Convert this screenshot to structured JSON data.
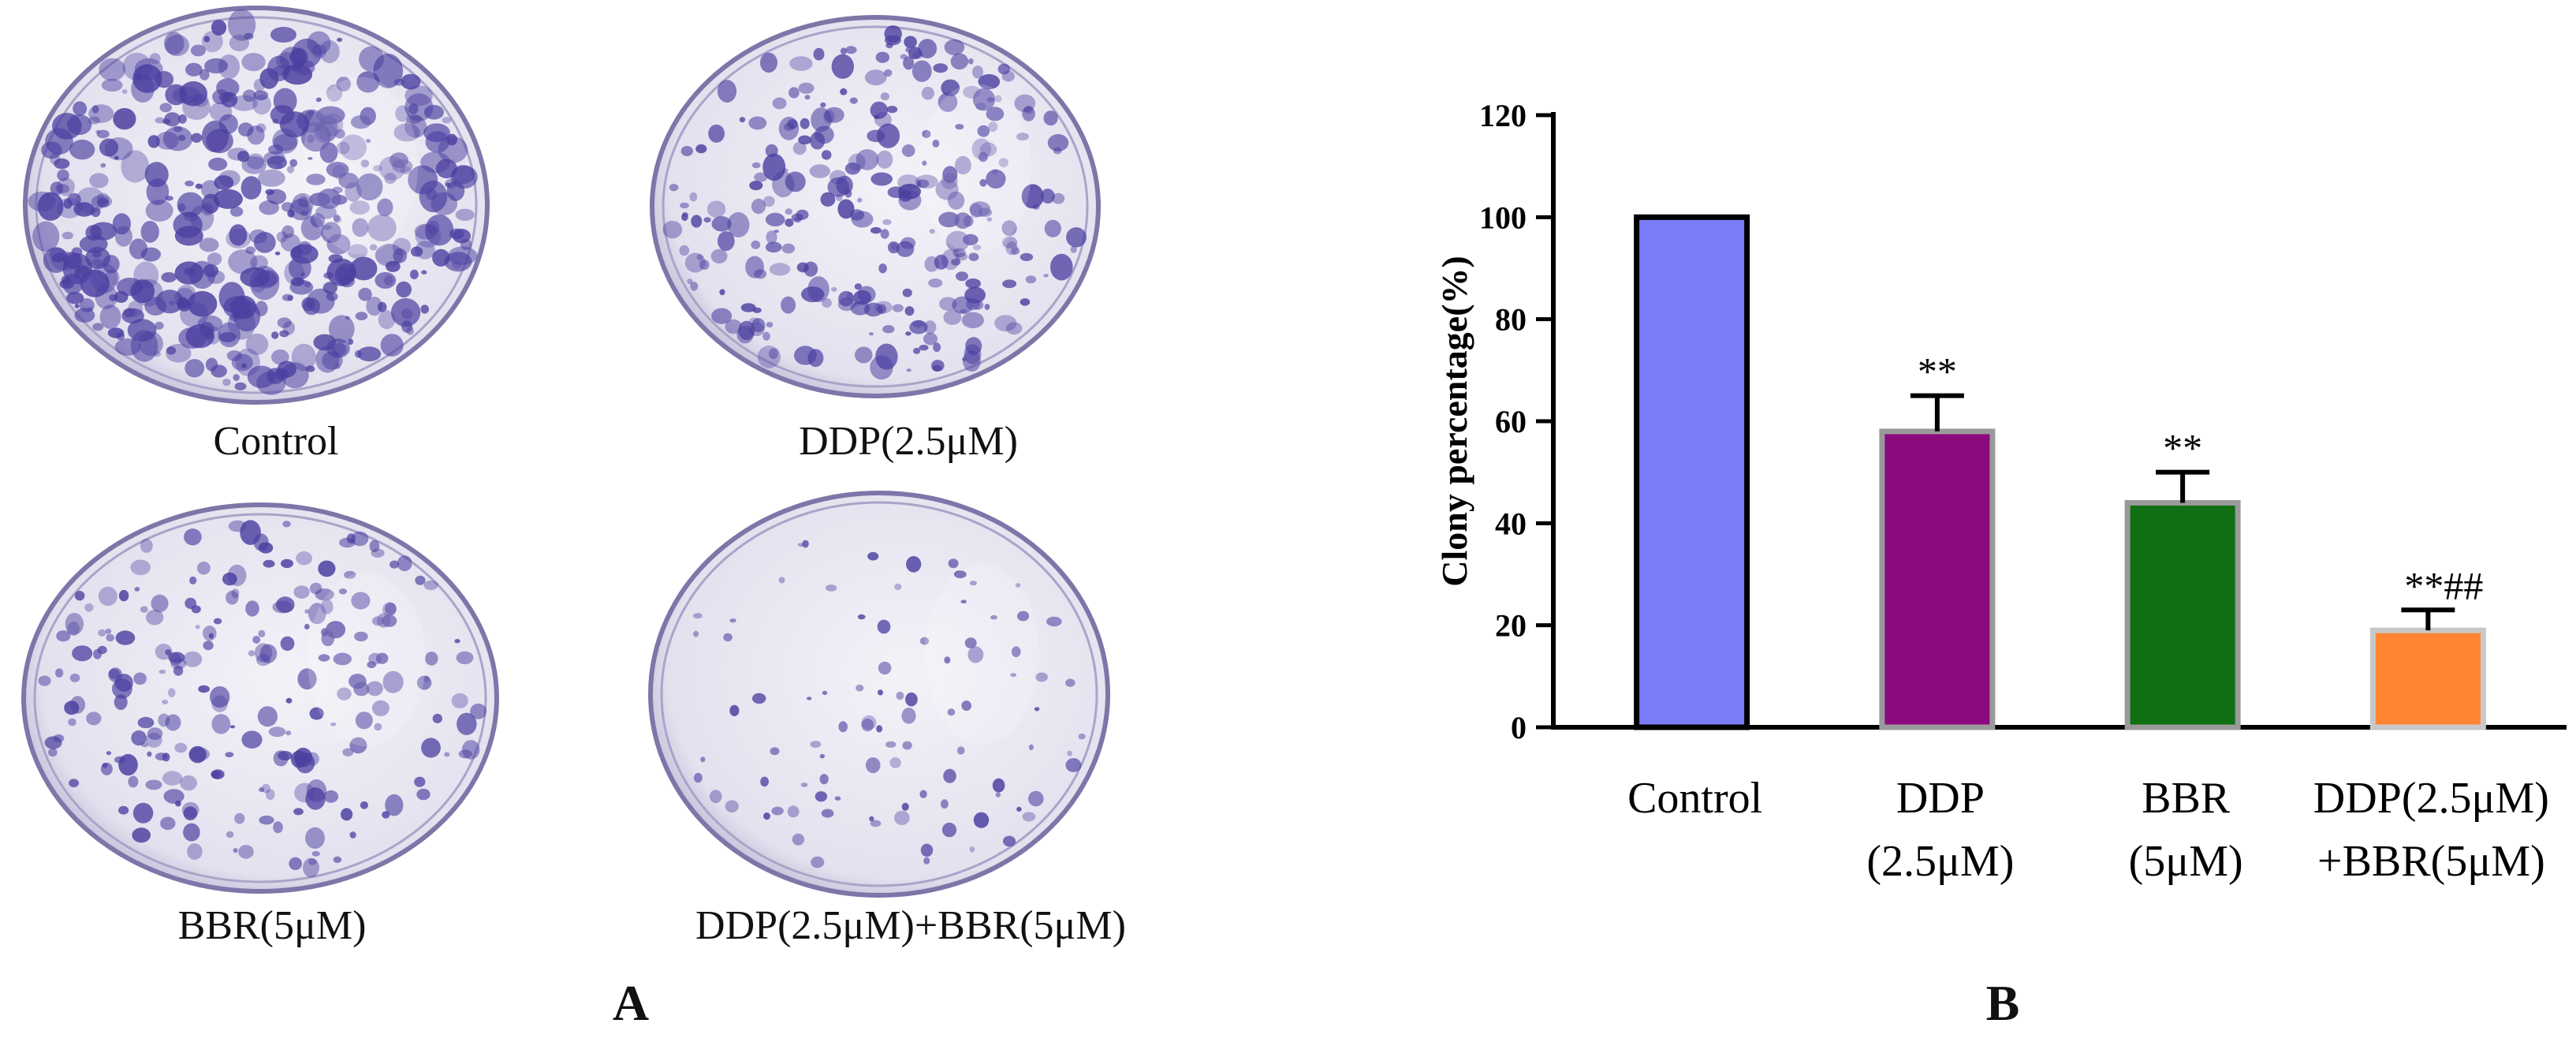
{
  "panel_a": {
    "letter": "A",
    "plates": [
      {
        "label": "Control",
        "density": 1.0
      },
      {
        "label": "DDP(2.5μM)",
        "density": 0.62
      },
      {
        "label": "BBR(5μM)",
        "density": 0.48
      },
      {
        "label": "DDP(2.5μM)+BBR(5μM)",
        "density": 0.18
      }
    ]
  },
  "panel_b": {
    "letter": "B"
  },
  "colors": {
    "control": "#7B7CF7",
    "ddp": "#8B0A7E",
    "bbr": "#0F6F12",
    "combo": "#FF8533",
    "stain": "#4B3FA0"
  },
  "chart_data": {
    "type": "bar",
    "ylabel": "Clony percentage(%)",
    "xlabel": "",
    "ylim": [
      0,
      120
    ],
    "yticks": [
      "0",
      "20",
      "40",
      "60",
      "80",
      "100",
      "120"
    ],
    "grid": false,
    "categories": [
      [
        "Control"
      ],
      [
        "DDP",
        "(2.5μM)"
      ],
      [
        "BBR",
        "(5μM)"
      ],
      [
        "DDP(2.5μM)",
        "+BBR(5μM)"
      ]
    ],
    "values": [
      100,
      58,
      44,
      19
    ],
    "error": [
      0,
      7,
      6,
      4
    ],
    "annotations": [
      "",
      "**",
      "**",
      "**##"
    ],
    "bar_colors": [
      "#7B7CF7",
      "#8B0A7E",
      "#0F6F12",
      "#FF8533"
    ],
    "bar_edges": [
      "#000000",
      "#9A9A9A",
      "#9A9A9A",
      "#C8C8C8"
    ]
  }
}
